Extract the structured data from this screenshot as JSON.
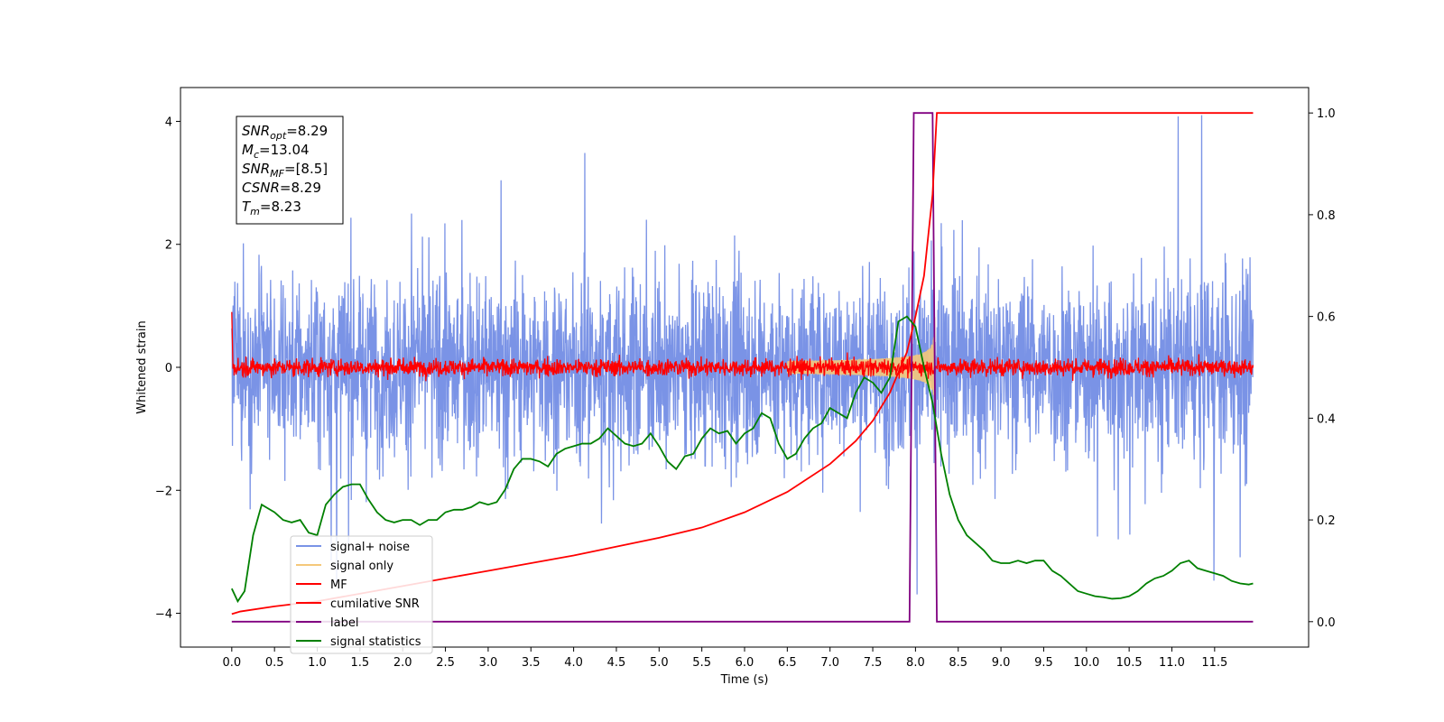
{
  "chart_data": {
    "type": "line",
    "xlabel": "Time (s)",
    "ylabel_left": "Whitened strain",
    "xlim": [
      -0.6,
      12.6
    ],
    "ylim_left": [
      -4.55,
      4.55
    ],
    "ylim_right": [
      -0.05,
      1.05
    ],
    "x_ticks": [
      "0.0",
      "0.5",
      "1.0",
      "1.5",
      "2.0",
      "2.5",
      "3.0",
      "3.5",
      "4.0",
      "4.5",
      "5.0",
      "5.5",
      "6.0",
      "6.5",
      "7.0",
      "7.5",
      "8.0",
      "8.5",
      "9.0",
      "9.5",
      "10.0",
      "10.5",
      "11.0",
      "11.5"
    ],
    "y_left_ticks": [
      4,
      2,
      0,
      -2,
      -4
    ],
    "y_right_ticks": [
      "1.0",
      "0.8",
      "0.6",
      "0.4",
      "0.2",
      "0.0"
    ],
    "annotation": {
      "lines": [
        {
          "sym": "SNR",
          "sub": "opt",
          "rest": "=8.29"
        },
        {
          "sym": "M",
          "sub": "c",
          "rest": "=13.04"
        },
        {
          "sym": "SNR",
          "sub": "MF",
          "rest": "=[8.5]"
        },
        {
          "sym": "CSNR",
          "sub": "",
          "rest": "=8.29"
        },
        {
          "sym": "T",
          "sub": "m",
          "rest": "=8.23"
        }
      ]
    },
    "legend": [
      {
        "label": "signal+ noise",
        "color": "#7a93e6"
      },
      {
        "label": "signal only",
        "color": "#f5c87a"
      },
      {
        "label": "MF",
        "color": "#ff0000"
      },
      {
        "label": "cumilative SNR",
        "color": "#ff0000"
      },
      {
        "label": "label",
        "color": "#800080"
      },
      {
        "label": "signal statistics",
        "color": "#008000"
      }
    ],
    "series": [
      {
        "name": "label",
        "axis": "right",
        "x": [
          0.0,
          7.93,
          7.98,
          8.2,
          8.25,
          11.95
        ],
        "y": [
          0.0,
          0.0,
          1.0,
          1.0,
          0.0,
          0.0
        ]
      },
      {
        "name": "cumilative SNR",
        "axis": "right",
        "x": [
          0.0,
          0.1,
          0.5,
          1.0,
          2.0,
          3.0,
          4.0,
          5.0,
          5.5,
          6.0,
          6.5,
          7.0,
          7.3,
          7.5,
          7.7,
          7.9,
          8.0,
          8.1,
          8.2,
          8.25,
          11.95
        ],
        "y": [
          0.015,
          0.02,
          0.03,
          0.04,
          0.07,
          0.1,
          0.13,
          0.165,
          0.185,
          0.215,
          0.255,
          0.31,
          0.355,
          0.395,
          0.45,
          0.53,
          0.6,
          0.68,
          0.84,
          1.0,
          1.0
        ]
      },
      {
        "name": "signal statistics",
        "axis": "right",
        "x": [
          0.0,
          0.07,
          0.15,
          0.25,
          0.35,
          0.4,
          0.5,
          0.6,
          0.7,
          0.8,
          0.9,
          1.0,
          1.1,
          1.2,
          1.3,
          1.4,
          1.5,
          1.6,
          1.7,
          1.8,
          1.9,
          2.0,
          2.1,
          2.2,
          2.3,
          2.4,
          2.5,
          2.6,
          2.7,
          2.8,
          2.9,
          3.0,
          3.1,
          3.2,
          3.3,
          3.4,
          3.5,
          3.6,
          3.7,
          3.8,
          3.9,
          4.0,
          4.1,
          4.2,
          4.3,
          4.4,
          4.5,
          4.6,
          4.7,
          4.8,
          4.9,
          5.0,
          5.1,
          5.2,
          5.3,
          5.4,
          5.5,
          5.6,
          5.7,
          5.8,
          5.9,
          6.0,
          6.1,
          6.2,
          6.3,
          6.4,
          6.5,
          6.6,
          6.7,
          6.8,
          6.9,
          7.0,
          7.1,
          7.2,
          7.3,
          7.4,
          7.5,
          7.6,
          7.7,
          7.8,
          7.9,
          8.0,
          8.1,
          8.2,
          8.3,
          8.4,
          8.5,
          8.6,
          8.7,
          8.8,
          8.9,
          9.0,
          9.1,
          9.2,
          9.3,
          9.4,
          9.5,
          9.6,
          9.7,
          9.8,
          9.9,
          10.0,
          10.1,
          10.2,
          10.3,
          10.4,
          10.5,
          10.6,
          10.7,
          10.8,
          10.9,
          11.0,
          11.1,
          11.2,
          11.3,
          11.4,
          11.5,
          11.6,
          11.7,
          11.8,
          11.9,
          11.95
        ],
        "y": [
          0.065,
          0.04,
          0.06,
          0.17,
          0.23,
          0.225,
          0.215,
          0.2,
          0.195,
          0.2,
          0.175,
          0.17,
          0.23,
          0.25,
          0.265,
          0.27,
          0.27,
          0.24,
          0.215,
          0.2,
          0.195,
          0.2,
          0.2,
          0.19,
          0.2,
          0.2,
          0.215,
          0.22,
          0.22,
          0.225,
          0.235,
          0.23,
          0.235,
          0.26,
          0.3,
          0.32,
          0.32,
          0.315,
          0.305,
          0.33,
          0.34,
          0.345,
          0.35,
          0.35,
          0.36,
          0.38,
          0.365,
          0.35,
          0.345,
          0.35,
          0.37,
          0.345,
          0.315,
          0.3,
          0.325,
          0.33,
          0.36,
          0.38,
          0.37,
          0.375,
          0.35,
          0.37,
          0.38,
          0.41,
          0.4,
          0.35,
          0.32,
          0.33,
          0.36,
          0.38,
          0.39,
          0.42,
          0.41,
          0.4,
          0.45,
          0.48,
          0.47,
          0.45,
          0.48,
          0.59,
          0.6,
          0.58,
          0.5,
          0.43,
          0.33,
          0.25,
          0.2,
          0.17,
          0.155,
          0.14,
          0.12,
          0.115,
          0.115,
          0.12,
          0.115,
          0.12,
          0.12,
          0.1,
          0.09,
          0.075,
          0.06,
          0.055,
          0.05,
          0.048,
          0.045,
          0.046,
          0.05,
          0.06,
          0.075,
          0.085,
          0.09,
          0.1,
          0.115,
          0.12,
          0.105,
          0.1,
          0.095,
          0.09,
          0.08,
          0.075,
          0.073,
          0.075
        ]
      }
    ]
  }
}
